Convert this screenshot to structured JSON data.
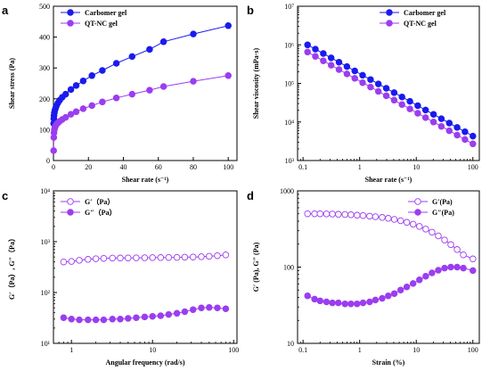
{
  "colors": {
    "blue": "#1a1aee",
    "purple": "#9b3df0",
    "axis": "#000000"
  },
  "chart_data": [
    {
      "panel": "a",
      "type": "line",
      "xscale": "linear",
      "yscale": "linear",
      "xlim": [
        0,
        105
      ],
      "ylim": [
        0,
        500
      ],
      "xticks": [
        0,
        20,
        40,
        60,
        80,
        100
      ],
      "yticks": [
        0,
        100,
        200,
        300,
        400,
        500
      ],
      "xlabel": "Shear rate (s⁻¹)",
      "ylabel": "Shear stress (Pa)",
      "legend_position": "top-left",
      "series": [
        {
          "name": "Carbomer gel",
          "color": "#1a1aee",
          "filled": true,
          "marker": "circle",
          "x": [
            0.1,
            0.2,
            0.3,
            0.5,
            0.8,
            1.2,
            1.7,
            2.5,
            3.5,
            5,
            7,
            10,
            13,
            17,
            22,
            28,
            36,
            45,
            55,
            63,
            80,
            100
          ],
          "y": [
            120,
            135,
            145,
            155,
            163,
            170,
            177,
            186,
            195,
            205,
            215,
            230,
            243,
            258,
            275,
            292,
            315,
            337,
            360,
            385,
            410,
            437
          ]
        },
        {
          "name": "QT-NC gel",
          "color": "#9b3df0",
          "filled": true,
          "marker": "circle",
          "x": [
            0.1,
            0.2,
            0.3,
            0.5,
            0.8,
            1.2,
            1.7,
            2.5,
            3.5,
            5,
            7,
            10,
            13,
            17,
            22,
            28,
            36,
            45,
            55,
            63,
            80,
            100
          ],
          "y": [
            32,
            75,
            90,
            100,
            107,
            112,
            117,
            122,
            127,
            133,
            140,
            150,
            158,
            168,
            178,
            190,
            203,
            215,
            228,
            240,
            257,
            275
          ]
        }
      ]
    },
    {
      "panel": "b",
      "type": "scatter",
      "xscale": "log",
      "yscale": "log",
      "xlim": [
        0.08,
        130
      ],
      "ylim": [
        1000,
        10000000
      ],
      "xticks": [
        0.1,
        1,
        10,
        100
      ],
      "xticklabels": [
        "0.1",
        "1",
        "10",
        "100"
      ],
      "yticks": [
        1000,
        10000,
        100000,
        1000000,
        10000000
      ],
      "yticklabels": [
        "10³",
        "10⁴",
        "10⁵",
        "10⁶",
        "10⁷"
      ],
      "xlabel": "Shear rate (s⁻¹)",
      "ylabel": "Shear viscosity (mPa·s)",
      "legend_position": "top-right",
      "series": [
        {
          "name": "Carbomer gel",
          "color": "#1a1aee",
          "filled": true,
          "marker": "circle",
          "x_start": 0.12,
          "x_end": 100,
          "count": 22,
          "y_start": 1000000,
          "y_end": 4300
        },
        {
          "name": "QT-NC gel",
          "color": "#9b3df0",
          "filled": true,
          "marker": "circle",
          "x_start": 0.12,
          "x_end": 100,
          "count": 22,
          "y_start": 650000,
          "y_end": 2700
        }
      ]
    },
    {
      "panel": "c",
      "type": "line",
      "xscale": "log",
      "yscale": "log",
      "xlim": [
        0.6,
        110
      ],
      "ylim": [
        10,
        10000
      ],
      "xticks": [
        1,
        10,
        100
      ],
      "xticklabels": [
        "1",
        "10",
        "100"
      ],
      "yticks": [
        10,
        100,
        1000,
        10000
      ],
      "yticklabels": [
        "10¹",
        "10²",
        "10³",
        "10⁴"
      ],
      "xlabel": "Angular frequency (rad/s)",
      "ylabel": "G′（Pa）, G″（Pa）",
      "legend_position": "top-left",
      "series": [
        {
          "name": "G′（Pa）",
          "color": "#9b3df0",
          "filled": false,
          "marker": "circle",
          "x": [
            0.8,
            1.0,
            1.25,
            1.6,
            2.0,
            2.5,
            3.2,
            4.0,
            5.0,
            6.3,
            8.0,
            10,
            12.6,
            15.8,
            20,
            25,
            31.6,
            40,
            50,
            63,
            80
          ],
          "y": [
            400,
            410,
            430,
            450,
            462,
            470,
            475,
            478,
            480,
            482,
            484,
            486,
            488,
            490,
            492,
            495,
            500,
            505,
            515,
            530,
            550
          ]
        },
        {
          "name": "G″（Pa）",
          "color": "#9b3df0",
          "filled": true,
          "marker": "circle",
          "x": [
            0.8,
            1.0,
            1.25,
            1.6,
            2.0,
            2.5,
            3.2,
            4.0,
            5.0,
            6.3,
            8.0,
            10,
            12.6,
            15.8,
            20,
            25,
            31.6,
            40,
            50,
            63,
            80
          ],
          "y": [
            32,
            30,
            29,
            29,
            29,
            29,
            30,
            30,
            31,
            32,
            33,
            34,
            35,
            37,
            39,
            42,
            46,
            50,
            51,
            50,
            48
          ]
        }
      ]
    },
    {
      "panel": "d",
      "type": "line",
      "xscale": "log",
      "yscale": "log",
      "xlim": [
        0.08,
        130
      ],
      "ylim": [
        10,
        1000
      ],
      "xticks": [
        0.1,
        1,
        10,
        100
      ],
      "xticklabels": [
        "0.1",
        "1",
        "10",
        "100"
      ],
      "yticks": [
        10,
        100,
        1000
      ],
      "yticklabels": [
        "10",
        "100",
        "1000"
      ],
      "xlabel": "Strain (%)",
      "ylabel": "G′ (Pa), G″ (Pa)",
      "legend_position": "top-right",
      "series": [
        {
          "name": "G′(Pa)",
          "color": "#9b3df0",
          "filled": false,
          "marker": "circle",
          "x": [
            0.12,
            0.16,
            0.2,
            0.26,
            0.33,
            0.42,
            0.55,
            0.7,
            0.9,
            1.15,
            1.5,
            1.9,
            2.5,
            3.2,
            4.1,
            5.3,
            6.8,
            8.8,
            11.4,
            14.7,
            19,
            24.5,
            31.6,
            40.8,
            52.7,
            68,
            100
          ],
          "y": [
            500,
            500,
            500,
            498,
            496,
            493,
            490,
            486,
            480,
            474,
            466,
            458,
            448,
            436,
            422,
            406,
            387,
            365,
            341,
            315,
            287,
            257,
            227,
            197,
            170,
            145,
            128
          ]
        },
        {
          "name": "G″(Pa)",
          "color": "#9b3df0",
          "filled": true,
          "marker": "circle",
          "x": [
            0.12,
            0.16,
            0.2,
            0.26,
            0.33,
            0.42,
            0.55,
            0.7,
            0.9,
            1.15,
            1.5,
            1.9,
            2.5,
            3.2,
            4.1,
            5.3,
            6.8,
            8.8,
            11.4,
            14.7,
            19,
            24.5,
            31.6,
            40.8,
            52.7,
            68,
            100
          ],
          "y": [
            42,
            38,
            36,
            35,
            34,
            34,
            33,
            33,
            33,
            34,
            35,
            37,
            39,
            42,
            45,
            50,
            55,
            61,
            68,
            76,
            84,
            91,
            97,
            100,
            100,
            97,
            90
          ]
        }
      ]
    }
  ],
  "panel_labels": [
    "a",
    "b",
    "c",
    "d"
  ]
}
